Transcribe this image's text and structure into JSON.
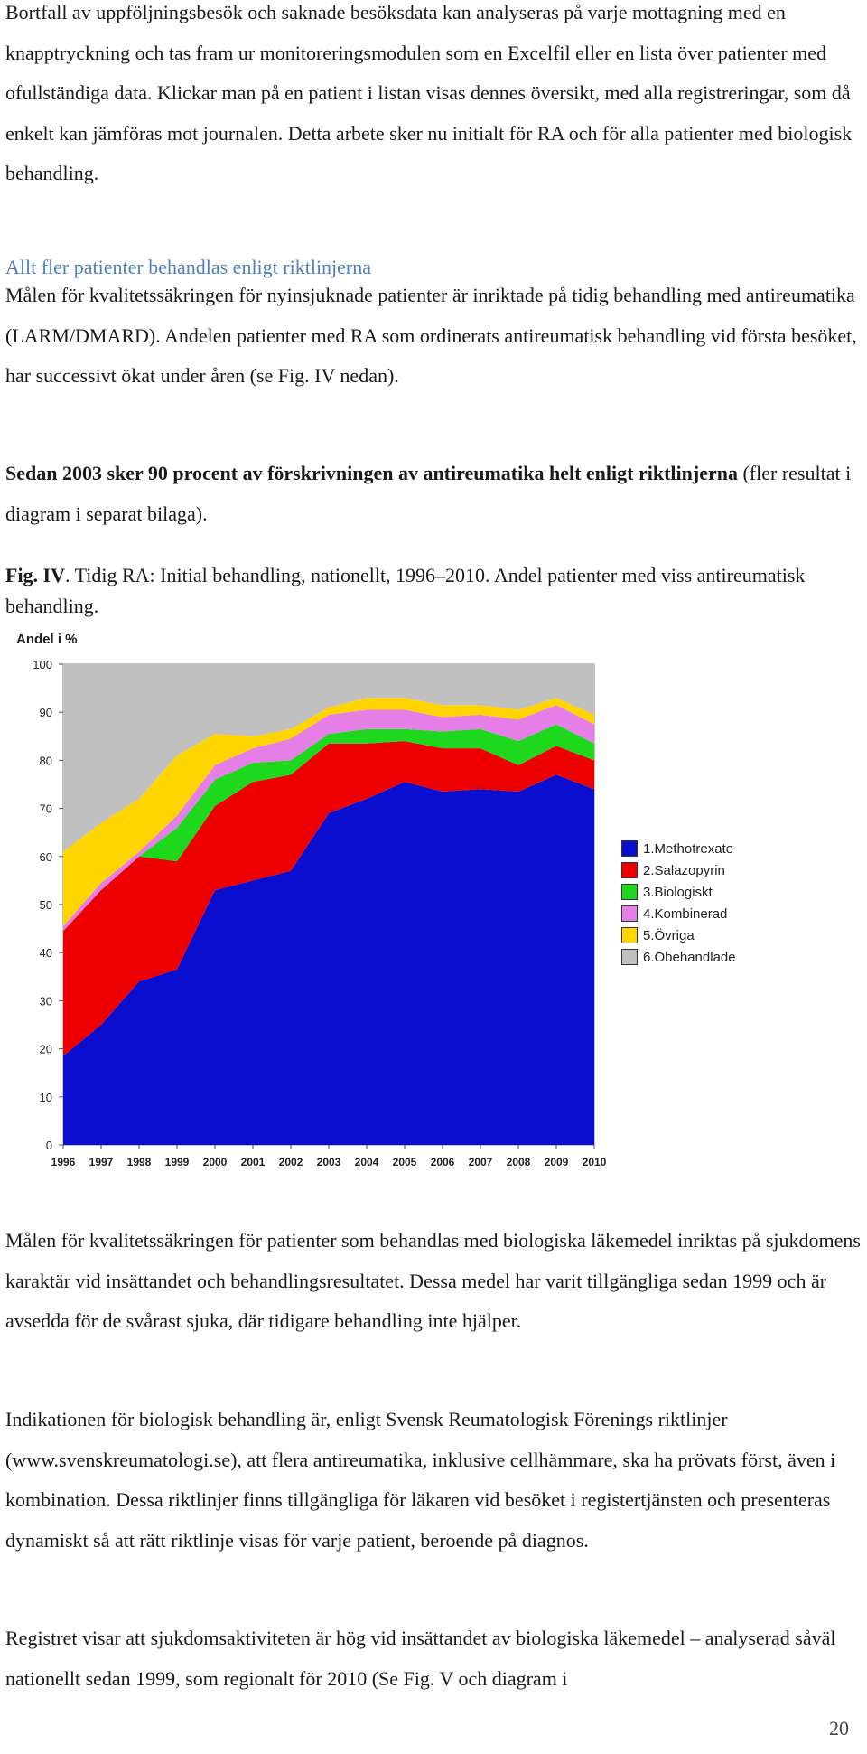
{
  "paragraphs": {
    "p1": "Bortfall av uppföljningsbesök och saknade besöksdata kan analyseras på varje mottagning med en knapptryckning och tas fram ur monitoreringsmodulen som en Excelfil eller en lista över patienter med ofullständiga data. Klickar man på en patient i listan visas dennes översikt, med alla registreringar, som då enkelt kan jämföras mot journalen. Detta arbete sker nu initialt för RA och för alla patienter med biologisk behandling.",
    "heading": "Allt fler patienter behandlas enligt riktlinjerna",
    "p2": "Målen för kvalitetssäkringen för nyinsjuknade patienter är inriktade på tidig behandling med antireumatika (LARM/DMARD). Andelen patienter med RA som ordinerats antireumatisk behandling vid första besöket, har successivt ökat under åren (se Fig. IV nedan).",
    "p3_bold": "Sedan 2003 sker 90 procent av förskrivningen av antireumatika helt enligt riktlinjerna",
    "p3_rest": " (fler resultat i diagram i separat bilaga).",
    "fig_label": "Fig. IV",
    "fig_caption": ". Tidig RA: Initial behandling, nationellt, 1996–2010. Andel patienter med viss antireumatisk behandling.",
    "p4": "Målen för kvalitetssäkringen för patienter som behandlas med biologiska läkemedel inriktas på sjukdomens karaktär vid insättandet och behandlingsresultatet. Dessa medel har varit tillgängliga sedan 1999 och är avsedda för de svårast sjuka, där tidigare behandling inte hjälper.",
    "p5": "Indikationen för biologisk behandling är, enligt Svensk Reumatologisk Förenings riktlinjer (www.svenskreumatologi.se), att flera antireumatika, inklusive cellhämmare, ska ha prövats först, även i kombination. Dessa riktlinjer finns tillgängliga för läkaren vid besöket i registertjänsten och presenteras dynamiskt så att rätt riktlinje visas för varje patient, beroende på diagnos.",
    "p6": "Registret visar att sjukdomsaktiviteten är hög vid insättandet av biologiska läkemedel – analyserad såväl nationellt sedan 1999, som regionalt för 2010 (Se Fig. V och diagram i"
  },
  "page_number": "20",
  "chart_data": {
    "type": "area",
    "stacked": true,
    "ylabel": "Andel i %",
    "ylim": [
      0,
      100
    ],
    "yticks": [
      0,
      10,
      20,
      30,
      40,
      50,
      60,
      70,
      80,
      90,
      100
    ],
    "x": [
      "1996",
      "1997",
      "1998",
      "1999",
      "2000",
      "2001",
      "2002",
      "2003",
      "2004",
      "2005",
      "2006",
      "2007",
      "2008",
      "2009",
      "2010"
    ],
    "grid": false,
    "legend_position": "right",
    "series": [
      {
        "name": "1.Methotrexate",
        "color": "#0a0fcf",
        "values": [
          18.5,
          25,
          34,
          36.5,
          53,
          55,
          57,
          69,
          72,
          75.5,
          73.5,
          74,
          73.5,
          77,
          74
        ]
      },
      {
        "name": "2.Salazopyrin",
        "color": "#ee0000",
        "values": [
          26,
          28,
          26,
          22.5,
          17.5,
          20.5,
          20,
          14.5,
          11.5,
          8.5,
          9,
          8.5,
          5.5,
          6,
          6
        ]
      },
      {
        "name": "3.Biologiskt",
        "color": "#1ed81e",
        "values": [
          0,
          0,
          0,
          7,
          5.5,
          4,
          3,
          2,
          3,
          2.5,
          3.5,
          4,
          5,
          4.5,
          3.5
        ]
      },
      {
        "name": "4.Kombinerad",
        "color": "#e67ee8",
        "values": [
          1,
          1.5,
          1,
          2.5,
          3,
          3,
          4.5,
          4,
          4,
          4,
          3,
          3,
          4.5,
          4,
          4
        ]
      },
      {
        "name": "5.Övriga",
        "color": "#ffd500",
        "values": [
          15.5,
          12.5,
          11,
          12.5,
          6.5,
          2.5,
          2,
          1.5,
          2.5,
          2.5,
          2.5,
          2,
          2,
          1.5,
          2
        ]
      },
      {
        "name": "6.Obehandlade",
        "color": "#c0c0c0",
        "values": [
          39,
          33,
          28,
          19,
          14.5,
          15,
          13.5,
          9,
          7,
          7,
          8.5,
          8.5,
          9.5,
          7,
          10.5
        ]
      }
    ]
  }
}
